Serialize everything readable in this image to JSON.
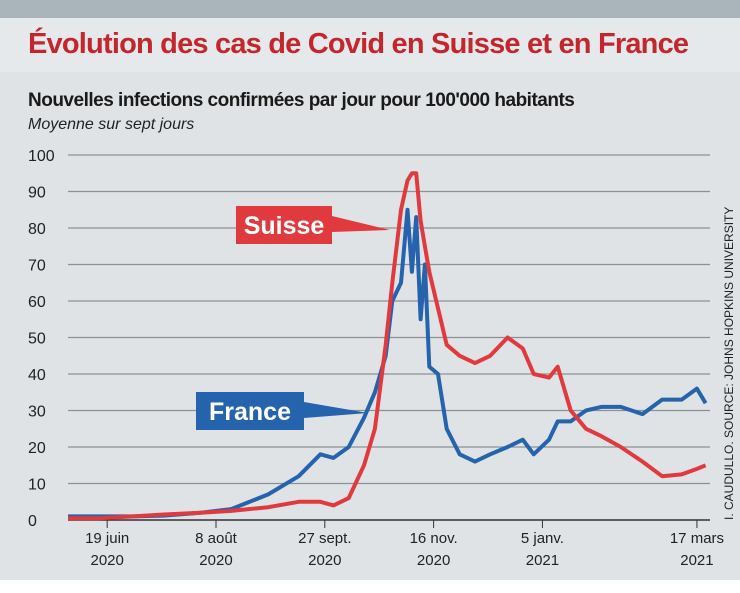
{
  "title": "Évolution des cas de Covid en Suisse et en France",
  "subtitle": "Nouvelles infections confirmées par jour pour 100'000 habitants",
  "note": "Moyenne sur sept jours",
  "source": "I. CAUDULLO. SOURCE: JOHNS HOPKINS UNIVERSITY",
  "chart_data": {
    "type": "line",
    "title": "Évolution des cas de Covid en Suisse et en France",
    "ylim": [
      0,
      100
    ],
    "grid": true,
    "yticks": [
      0,
      10,
      20,
      30,
      40,
      50,
      60,
      70,
      80,
      90,
      100
    ],
    "xticks": [
      {
        "date": "2020-06-19",
        "l1": "19 juin",
        "l2": "2020"
      },
      {
        "date": "2020-08-08",
        "l1": "8 août",
        "l2": "2020"
      },
      {
        "date": "2020-09-27",
        "l1": "27 sept.",
        "l2": "2020"
      },
      {
        "date": "2020-11-16",
        "l1": "16 nov.",
        "l2": "2020"
      },
      {
        "date": "2021-01-05",
        "l1": "5 janv.",
        "l2": "2021"
      },
      {
        "date": "2021-03-17",
        "l1": "17 mars",
        "l2": "2021"
      }
    ],
    "x": [
      "2020-06-01",
      "2020-06-15",
      "2020-07-01",
      "2020-07-15",
      "2020-08-01",
      "2020-08-15",
      "2020-09-01",
      "2020-09-15",
      "2020-09-25",
      "2020-10-01",
      "2020-10-08",
      "2020-10-15",
      "2020-10-20",
      "2020-10-25",
      "2020-10-28",
      "2020-11-01",
      "2020-11-04",
      "2020-11-06",
      "2020-11-08",
      "2020-11-10",
      "2020-11-12",
      "2020-11-14",
      "2020-11-18",
      "2020-11-22",
      "2020-11-28",
      "2020-12-05",
      "2020-12-12",
      "2020-12-20",
      "2020-12-27",
      "2021-01-01",
      "2021-01-08",
      "2021-01-12",
      "2021-01-18",
      "2021-01-25",
      "2021-02-01",
      "2021-02-10",
      "2021-02-20",
      "2021-03-01",
      "2021-03-10",
      "2021-03-17",
      "2021-03-21"
    ],
    "series": [
      {
        "name": "Suisse",
        "color": "#e03a3e",
        "values": [
          0.5,
          0.5,
          1,
          1.5,
          2,
          2.5,
          3.5,
          5,
          5,
          4,
          6,
          15,
          25,
          48,
          65,
          85,
          93,
          95,
          95,
          82,
          75,
          68,
          58,
          48,
          45,
          43,
          45,
          50,
          47,
          40,
          39,
          42,
          30,
          25,
          23,
          20,
          16,
          12,
          12.5,
          14,
          15
        ]
      },
      {
        "name": "France",
        "color": "#2563ad",
        "values": [
          1,
          1,
          1,
          1.2,
          2,
          3,
          7,
          12,
          18,
          17,
          20,
          28,
          35,
          45,
          60,
          65,
          85,
          68,
          83,
          55,
          70,
          42,
          40,
          25,
          18,
          16,
          18,
          20,
          22,
          18,
          22,
          27,
          27,
          30,
          31,
          31,
          29,
          33,
          33,
          36,
          32
        ]
      }
    ]
  }
}
